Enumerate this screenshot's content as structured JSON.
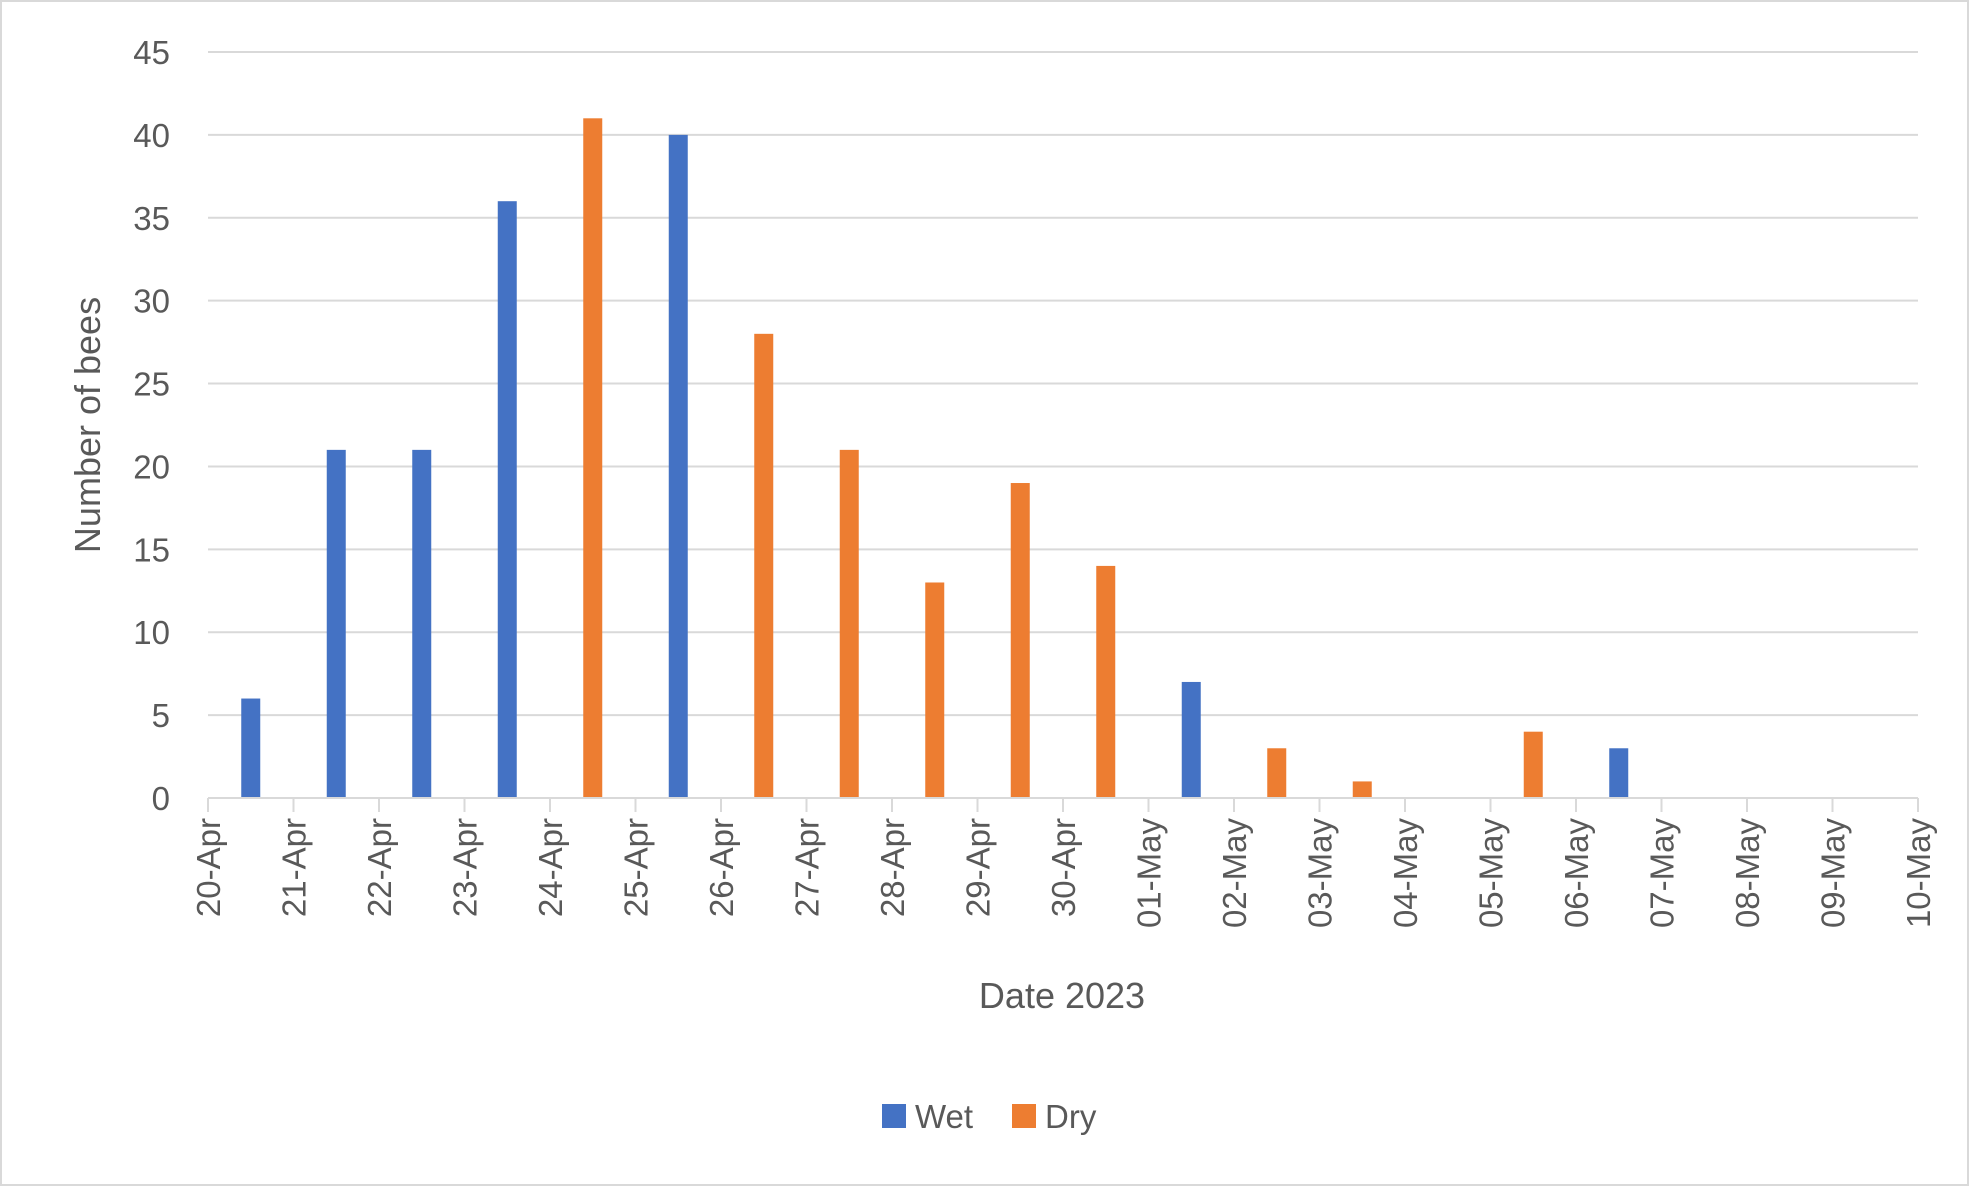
{
  "chart_data": {
    "type": "bar",
    "xlabel": "Date 2023",
    "ylabel": "Number of bees",
    "ylim": [
      0,
      45
    ],
    "yticks": [
      0,
      5,
      10,
      15,
      20,
      25,
      30,
      35,
      40,
      45
    ],
    "xlim": [
      "20-Apr",
      "10-May"
    ],
    "xticks": [
      "20-Apr",
      "21-Apr",
      "22-Apr",
      "23-Apr",
      "24-Apr",
      "25-Apr",
      "26-Apr",
      "27-Apr",
      "28-Apr",
      "29-Apr",
      "30-Apr",
      "01-May",
      "02-May",
      "03-May",
      "04-May",
      "05-May",
      "06-May",
      "07-May",
      "08-May",
      "09-May",
      "10-May"
    ],
    "grid": true,
    "legend_position": "bottom",
    "series": [
      {
        "name": "Wet",
        "color": "#4472c4",
        "points": [
          {
            "x": "21-Apr",
            "y": 6
          },
          {
            "x": "22-Apr",
            "y": 21
          },
          {
            "x": "23-Apr",
            "y": 21
          },
          {
            "x": "24-Apr",
            "y": 36
          },
          {
            "x": "26-Apr",
            "y": 40
          },
          {
            "x": "02-May",
            "y": 7
          },
          {
            "x": "07-May",
            "y": 3
          }
        ]
      },
      {
        "name": "Dry",
        "color": "#ed7d31",
        "points": [
          {
            "x": "25-Apr",
            "y": 41
          },
          {
            "x": "27-Apr",
            "y": 28
          },
          {
            "x": "28-Apr",
            "y": 21
          },
          {
            "x": "29-Apr",
            "y": 13
          },
          {
            "x": "30-Apr",
            "y": 19
          },
          {
            "x": "01-May",
            "y": 14
          },
          {
            "x": "03-May",
            "y": 3
          },
          {
            "x": "04-May",
            "y": 1
          },
          {
            "x": "06-May",
            "y": 4
          }
        ]
      }
    ]
  }
}
